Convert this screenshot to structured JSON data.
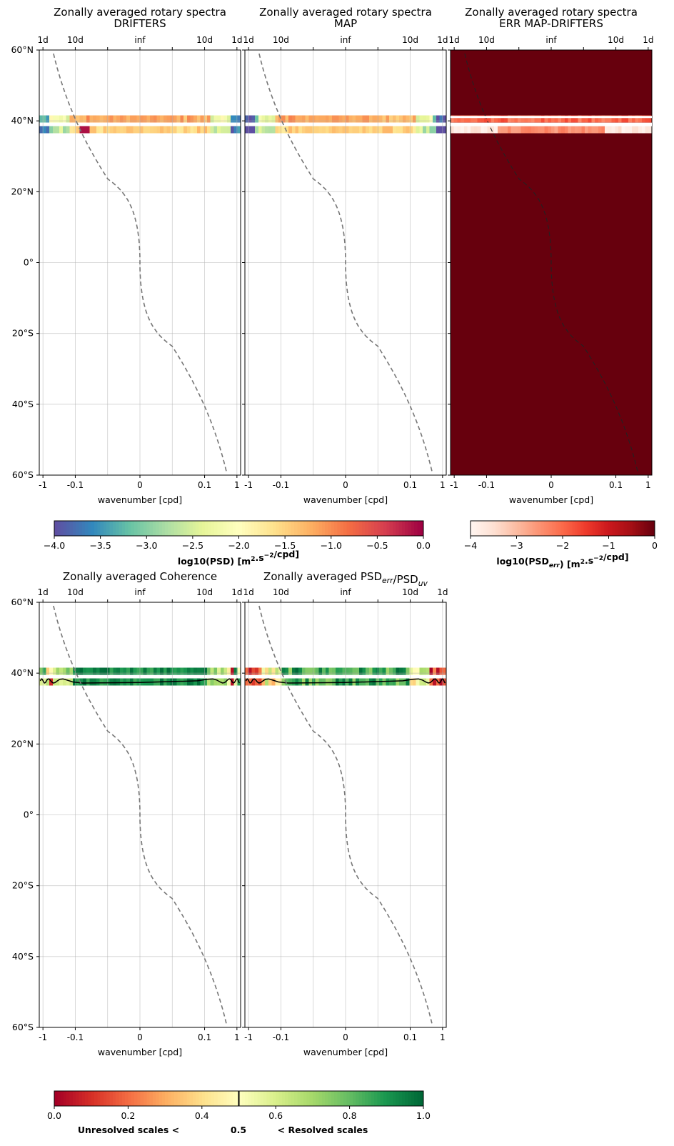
{
  "figure": {
    "panels": [
      {
        "id": "drifters",
        "title": "Zonally averaged rotary spectra",
        "subtitle": "DRIFTERS"
      },
      {
        "id": "map",
        "title": "Zonally averaged rotary spectra",
        "subtitle": "MAP"
      },
      {
        "id": "err",
        "title": "Zonally averaged rotary spectra",
        "subtitle": "ERR MAP-DRIFTERS"
      },
      {
        "id": "coherence",
        "title": "Zonally averaged Coherence",
        "subtitle": ""
      },
      {
        "id": "ratio",
        "title": "Zonally averaged PSD",
        "title_sub1": "err",
        "title_mid": "/PSD",
        "title_sub2": "uv",
        "subtitle": ""
      }
    ],
    "xlabel": "wavenumber [cpd]",
    "x_ticks_bottom": [
      "-1",
      "-0.1",
      "0",
      "0.1",
      "1"
    ],
    "x_ticks_top": [
      "1d",
      "10d",
      "inf",
      "10d",
      "1d"
    ],
    "y_ticks": [
      "60°N",
      "40°N",
      "20°N",
      "0°",
      "20°S",
      "40°S",
      "60°S"
    ],
    "colorbar_psd": {
      "ticks": [
        "−4.0",
        "−3.5",
        "−3.0",
        "−2.5",
        "−2.0",
        "−1.5",
        "−1.0",
        "−0.5",
        "0.0"
      ],
      "label_pre": "log10(PSD) [m",
      "label_mid": ".s",
      "label_post": "/cpd]",
      "sup1": "2",
      "sup2": "−2",
      "cmap": "Spectral_r",
      "vmin": -4.0,
      "vmax": 0.0
    },
    "colorbar_err": {
      "ticks": [
        "−4",
        "−3",
        "−2",
        "−1",
        "0"
      ],
      "label_pre": "log10(PSD",
      "label_sub": "err",
      "label_mid": ") [m",
      "label_mid2": ".s",
      "label_post": "/cpd]",
      "sup1": "2",
      "sup2": "−2",
      "cmap": "Reds",
      "vmin": -4,
      "vmax": 0
    },
    "colorbar_coh": {
      "ticks": [
        "0.0",
        "0.2",
        "0.4",
        "0.6",
        "0.8",
        "1.0"
      ],
      "label_left": "Unresolved scales <",
      "label_mid": "0.5",
      "label_right": "< Resolved scales",
      "cmap": "RdYlGn",
      "vmin": 0,
      "vmax": 1,
      "threshold": 0.5
    }
  },
  "chart_data": [
    {
      "type": "heatmap",
      "panel": "drifters",
      "title": "Zonally averaged rotary spectra",
      "subtitle": "DRIFTERS",
      "xlabel": "wavenumber [cpd]",
      "xscale": "symlog",
      "xlim": [
        -1.3,
        1.3
      ],
      "ylim": [
        -60,
        60
      ],
      "data_lat_bands": [
        [
          36.5,
          38.5
        ],
        [
          39.5,
          41.5
        ]
      ],
      "value": "log10(PSD)",
      "range": [
        -4.0,
        0.0
      ],
      "overlay": "dashed gray curve (cutoff wavenumber vs latitude)",
      "grid": true
    },
    {
      "type": "heatmap",
      "panel": "map",
      "title": "Zonally averaged rotary spectra",
      "subtitle": "MAP",
      "xlabel": "wavenumber [cpd]",
      "xscale": "symlog",
      "xlim": [
        -1.3,
        1.3
      ],
      "ylim": [
        -60,
        60
      ],
      "data_lat_bands": [
        [
          36.5,
          38.5
        ],
        [
          39.5,
          41.5
        ]
      ],
      "value": "log10(PSD)",
      "range": [
        -4.0,
        0.0
      ],
      "grid": true
    },
    {
      "type": "heatmap",
      "panel": "err",
      "title": "Zonally averaged rotary spectra",
      "subtitle": "ERR MAP-DRIFTERS",
      "xlabel": "wavenumber [cpd]",
      "xscale": "symlog",
      "xlim": [
        -1.3,
        1.3
      ],
      "ylim": [
        -60,
        60
      ],
      "value": "log10(PSD_err)",
      "range": [
        -4,
        0
      ],
      "background_value": 0,
      "grid": false
    },
    {
      "type": "heatmap",
      "panel": "coherence",
      "title": "Zonally averaged Coherence",
      "xlabel": "wavenumber [cpd]",
      "xscale": "symlog",
      "xlim": [
        -1.3,
        1.3
      ],
      "ylim": [
        -60,
        60
      ],
      "data_lat_bands": [
        [
          36.5,
          38.5
        ],
        [
          39.5,
          41.5
        ]
      ],
      "value": "coherence",
      "range": [
        0,
        1
      ],
      "contour_level": 0.5,
      "grid": true
    },
    {
      "type": "heatmap",
      "panel": "ratio",
      "title": "Zonally averaged PSD_err/PSD_uv",
      "xlabel": "wavenumber [cpd]",
      "xscale": "symlog",
      "xlim": [
        -1.3,
        1.3
      ],
      "ylim": [
        -60,
        60
      ],
      "data_lat_bands": [
        [
          36.5,
          38.5
        ],
        [
          39.5,
          41.5
        ]
      ],
      "value": "1 - PSD_err/PSD_uv",
      "range": [
        0,
        1
      ],
      "contour_level": 0.5,
      "grid": true
    }
  ]
}
